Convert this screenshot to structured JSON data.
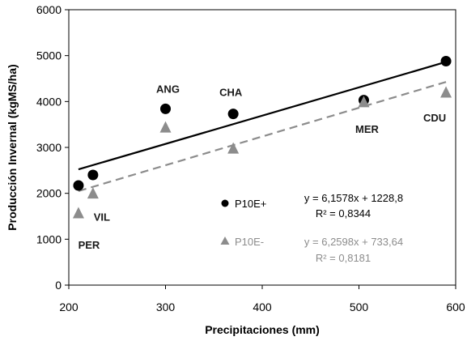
{
  "chart_data": {
    "type": "scatter",
    "title": "",
    "xlabel": "Precipitaciones (mm)",
    "ylabel": "Producción Invernal (kgMS/ha)",
    "xlim": [
      200,
      600
    ],
    "ylim": [
      0,
      6000
    ],
    "x_ticks": [
      "200",
      "300",
      "400",
      "500",
      "600"
    ],
    "y_ticks": [
      "0",
      "1000",
      "2000",
      "3000",
      "4000",
      "5000",
      "6000"
    ],
    "grid": false,
    "legend_position": "bottom-right",
    "series": [
      {
        "name": "P10E+",
        "marker": "circle",
        "color": "#000000",
        "points": [
          {
            "x": 210,
            "y": 2170
          },
          {
            "x": 225,
            "y": 2400
          },
          {
            "x": 300,
            "y": 3840
          },
          {
            "x": 370,
            "y": 3730
          },
          {
            "x": 505,
            "y": 4030
          },
          {
            "x": 590,
            "y": 4880
          }
        ],
        "trendline": {
          "slope": 6.1578,
          "intercept": 1228.8,
          "x_range": [
            210,
            590
          ],
          "style": "solid"
        },
        "equation": "y = 6,1578x + 1228,8",
        "r2": "R² = 0,8344"
      },
      {
        "name": "P10E-",
        "marker": "triangle",
        "color": "#8c8c8c",
        "points": [
          {
            "x": 210,
            "y": 1570
          },
          {
            "x": 225,
            "y": 2000
          },
          {
            "x": 300,
            "y": 3440
          },
          {
            "x": 370,
            "y": 2980
          },
          {
            "x": 505,
            "y": 3990
          },
          {
            "x": 590,
            "y": 4200
          }
        ],
        "trendline": {
          "slope": 6.2598,
          "intercept": 733.64,
          "x_range": [
            210,
            590
          ],
          "style": "dashed"
        },
        "equation": "y = 6,2598x + 733,64",
        "r2": "R² = 0,8181"
      }
    ],
    "point_labels": [
      {
        "text": "PER",
        "x": 210,
        "y": 1570
      },
      {
        "text": "VIL",
        "x": 225,
        "y": 2000
      },
      {
        "text": "ANG",
        "x": 300,
        "y": 3840
      },
      {
        "text": "CHA",
        "x": 370,
        "y": 3730
      },
      {
        "text": "MER",
        "x": 505,
        "y": 3990
      },
      {
        "text": "CDU",
        "x": 590,
        "y": 4200
      }
    ]
  }
}
